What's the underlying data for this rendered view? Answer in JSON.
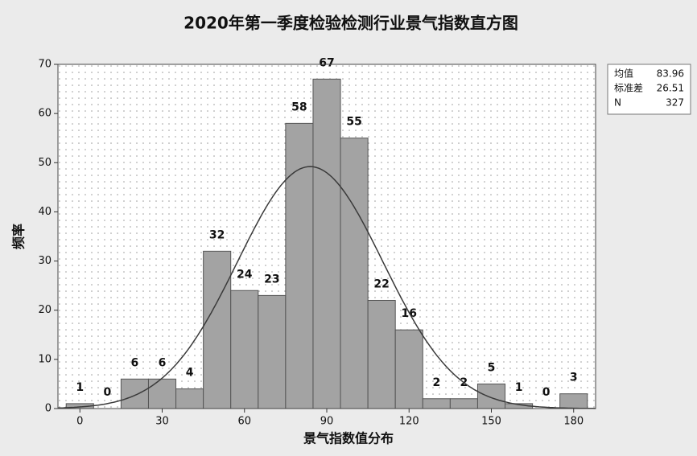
{
  "chart_data": {
    "type": "histogram",
    "title": "2020年第一季度检验检测行业景气指数直方图",
    "x_label": "景气指数值分布",
    "y_label": "频率",
    "bins": [
      -5,
      5,
      15,
      25,
      35,
      45,
      55,
      65,
      75,
      85,
      95,
      105,
      115,
      125,
      135,
      145,
      155,
      165,
      175,
      185
    ],
    "values": [
      1,
      0,
      6,
      6,
      4,
      32,
      24,
      23,
      58,
      67,
      55,
      22,
      16,
      2,
      2,
      5,
      1,
      0,
      3
    ],
    "color": "#a3a3a3",
    "xlim": [
      -8,
      188
    ],
    "xticks": [
      0,
      30,
      60,
      90,
      120,
      150,
      180
    ],
    "ylim": [
      0,
      70
    ],
    "yticks": [
      0,
      10,
      20,
      30,
      40,
      50,
      60,
      70
    ],
    "grid": true,
    "fit_curve": "normal",
    "curve_color": "#3a3a3a",
    "stats": [
      {
        "label": "均值",
        "value": 83.96
      },
      {
        "label": "标准差",
        "value": 26.51
      },
      {
        "label": "N",
        "value": 327
      }
    ]
  }
}
